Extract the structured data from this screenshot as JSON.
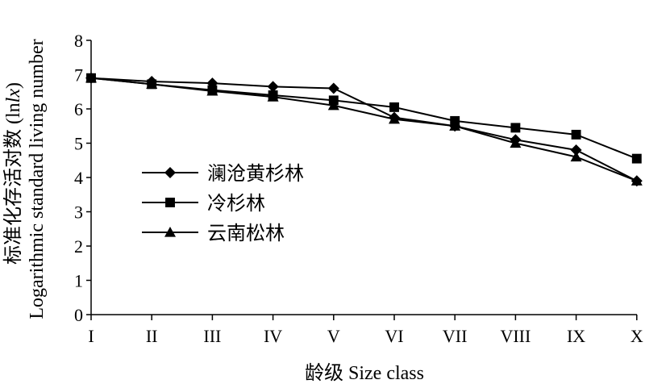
{
  "chart_data": {
    "type": "line",
    "categories": [
      "I",
      "II",
      "III",
      "IV",
      "V",
      "VI",
      "VII",
      "VIII",
      "IX",
      "X"
    ],
    "xlabel": "龄级 Size class",
    "ylabel_cn": "标准化存活对数 (ln",
    "ylabel_cn_italic": "lx",
    "ylabel_cn_end": ")",
    "ylabel_en": "Logarithmic standard living number",
    "ylim": [
      0,
      8
    ],
    "yticks": [
      "0",
      "1",
      "2",
      "3",
      "4",
      "5",
      "6",
      "7",
      "8"
    ],
    "grid": false,
    "legend_position": "middle-left",
    "series": [
      {
        "name": "澜沧黄杉林",
        "marker": "diamond",
        "values": [
          6.9,
          6.8,
          6.75,
          6.65,
          6.6,
          5.75,
          5.5,
          5.1,
          4.8,
          3.9
        ]
      },
      {
        "name": "冷杉林",
        "marker": "square",
        "values": [
          6.9,
          6.72,
          6.55,
          6.4,
          6.25,
          6.05,
          5.65,
          5.45,
          5.25,
          4.55
        ]
      },
      {
        "name": "云南松林",
        "marker": "triangle",
        "values": [
          6.9,
          6.72,
          6.52,
          6.35,
          6.1,
          5.7,
          5.5,
          5.0,
          4.6,
          3.9
        ]
      }
    ],
    "line_color": "#000000"
  }
}
